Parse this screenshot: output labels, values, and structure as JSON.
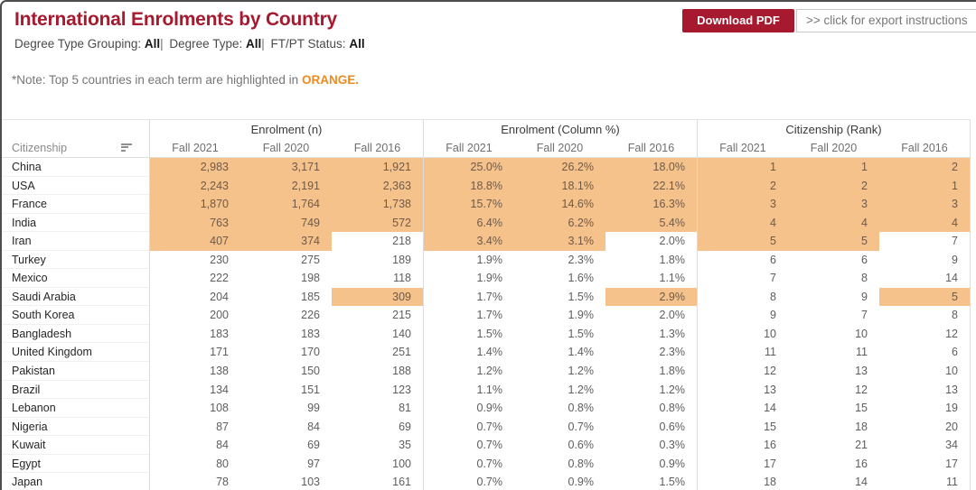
{
  "header": {
    "title": "International Enrolments by Country",
    "filters": [
      {
        "label": "Degree Type Grouping:",
        "value": "All"
      },
      {
        "label": "Degree Type:",
        "value": "All"
      },
      {
        "label": "FT/PT Status:",
        "value": "All"
      }
    ],
    "filter_separator": "|",
    "note_prefix": "*Note: Top 5 countries in each term are highlighted in ",
    "note_highlight": "ORANGE.",
    "download_button_label": "Download PDF",
    "export_instructions_label": ">> click for export instructions"
  },
  "colors": {
    "brand_red": "#a6192e",
    "highlight_orange": "#f5c28b",
    "note_orange": "#ee8a1f"
  },
  "table": {
    "row_dimension_label": "Citizenship",
    "column_groups": [
      "Enrolment (n)",
      "Enrolment (Column %)",
      "Citizenship (Rank)"
    ],
    "term_columns": [
      "Fall 2021",
      "Fall 2020",
      "Fall 2016"
    ],
    "highlight_rule": "Top 5 countries in each term are highlighted in orange",
    "rows": [
      {
        "country": "China",
        "enrolment": [
          "2,983",
          "3,171",
          "1,921"
        ],
        "column_pct": [
          "25.0%",
          "26.2%",
          "18.0%"
        ],
        "rank": [
          "1",
          "1",
          "2"
        ],
        "highlight_terms": [
          true,
          true,
          true
        ]
      },
      {
        "country": "USA",
        "enrolment": [
          "2,243",
          "2,191",
          "2,363"
        ],
        "column_pct": [
          "18.8%",
          "18.1%",
          "22.1%"
        ],
        "rank": [
          "2",
          "2",
          "1"
        ],
        "highlight_terms": [
          true,
          true,
          true
        ]
      },
      {
        "country": "France",
        "enrolment": [
          "1,870",
          "1,764",
          "1,738"
        ],
        "column_pct": [
          "15.7%",
          "14.6%",
          "16.3%"
        ],
        "rank": [
          "3",
          "3",
          "3"
        ],
        "highlight_terms": [
          true,
          true,
          true
        ]
      },
      {
        "country": "India",
        "enrolment": [
          "763",
          "749",
          "572"
        ],
        "column_pct": [
          "6.4%",
          "6.2%",
          "5.4%"
        ],
        "rank": [
          "4",
          "4",
          "4"
        ],
        "highlight_terms": [
          true,
          true,
          true
        ]
      },
      {
        "country": "Iran",
        "enrolment": [
          "407",
          "374",
          "218"
        ],
        "column_pct": [
          "3.4%",
          "3.1%",
          "2.0%"
        ],
        "rank": [
          "5",
          "5",
          "7"
        ],
        "highlight_terms": [
          true,
          true,
          false
        ]
      },
      {
        "country": "Turkey",
        "enrolment": [
          "230",
          "275",
          "189"
        ],
        "column_pct": [
          "1.9%",
          "2.3%",
          "1.8%"
        ],
        "rank": [
          "6",
          "6",
          "9"
        ],
        "highlight_terms": [
          false,
          false,
          false
        ]
      },
      {
        "country": "Mexico",
        "enrolment": [
          "222",
          "198",
          "118"
        ],
        "column_pct": [
          "1.9%",
          "1.6%",
          "1.1%"
        ],
        "rank": [
          "7",
          "8",
          "14"
        ],
        "highlight_terms": [
          false,
          false,
          false
        ]
      },
      {
        "country": "Saudi Arabia",
        "enrolment": [
          "204",
          "185",
          "309"
        ],
        "column_pct": [
          "1.7%",
          "1.5%",
          "2.9%"
        ],
        "rank": [
          "8",
          "9",
          "5"
        ],
        "highlight_terms": [
          false,
          false,
          true
        ]
      },
      {
        "country": "South Korea",
        "enrolment": [
          "200",
          "226",
          "215"
        ],
        "column_pct": [
          "1.7%",
          "1.9%",
          "2.0%"
        ],
        "rank": [
          "9",
          "7",
          "8"
        ],
        "highlight_terms": [
          false,
          false,
          false
        ]
      },
      {
        "country": "Bangladesh",
        "enrolment": [
          "183",
          "183",
          "140"
        ],
        "column_pct": [
          "1.5%",
          "1.5%",
          "1.3%"
        ],
        "rank": [
          "10",
          "10",
          "12"
        ],
        "highlight_terms": [
          false,
          false,
          false
        ]
      },
      {
        "country": "United Kingdom",
        "enrolment": [
          "171",
          "170",
          "251"
        ],
        "column_pct": [
          "1.4%",
          "1.4%",
          "2.3%"
        ],
        "rank": [
          "11",
          "11",
          "6"
        ],
        "highlight_terms": [
          false,
          false,
          false
        ]
      },
      {
        "country": "Pakistan",
        "enrolment": [
          "138",
          "150",
          "188"
        ],
        "column_pct": [
          "1.2%",
          "1.2%",
          "1.8%"
        ],
        "rank": [
          "12",
          "13",
          "10"
        ],
        "highlight_terms": [
          false,
          false,
          false
        ]
      },
      {
        "country": "Brazil",
        "enrolment": [
          "134",
          "151",
          "123"
        ],
        "column_pct": [
          "1.1%",
          "1.2%",
          "1.2%"
        ],
        "rank": [
          "13",
          "12",
          "13"
        ],
        "highlight_terms": [
          false,
          false,
          false
        ]
      },
      {
        "country": "Lebanon",
        "enrolment": [
          "108",
          "99",
          "81"
        ],
        "column_pct": [
          "0.9%",
          "0.8%",
          "0.8%"
        ],
        "rank": [
          "14",
          "15",
          "19"
        ],
        "highlight_terms": [
          false,
          false,
          false
        ]
      },
      {
        "country": "Nigeria",
        "enrolment": [
          "87",
          "84",
          "69"
        ],
        "column_pct": [
          "0.7%",
          "0.7%",
          "0.6%"
        ],
        "rank": [
          "15",
          "18",
          "20"
        ],
        "highlight_terms": [
          false,
          false,
          false
        ]
      },
      {
        "country": "Kuwait",
        "enrolment": [
          "84",
          "69",
          "35"
        ],
        "column_pct": [
          "0.7%",
          "0.6%",
          "0.3%"
        ],
        "rank": [
          "16",
          "21",
          "34"
        ],
        "highlight_terms": [
          false,
          false,
          false
        ]
      },
      {
        "country": "Egypt",
        "enrolment": [
          "80",
          "97",
          "100"
        ],
        "column_pct": [
          "0.7%",
          "0.8%",
          "0.9%"
        ],
        "rank": [
          "17",
          "16",
          "17"
        ],
        "highlight_terms": [
          false,
          false,
          false
        ]
      },
      {
        "country": "Japan",
        "enrolment": [
          "78",
          "103",
          "161"
        ],
        "column_pct": [
          "0.7%",
          "0.9%",
          "1.5%"
        ],
        "rank": [
          "18",
          "14",
          "11"
        ],
        "highlight_terms": [
          false,
          false,
          false
        ]
      }
    ]
  }
}
